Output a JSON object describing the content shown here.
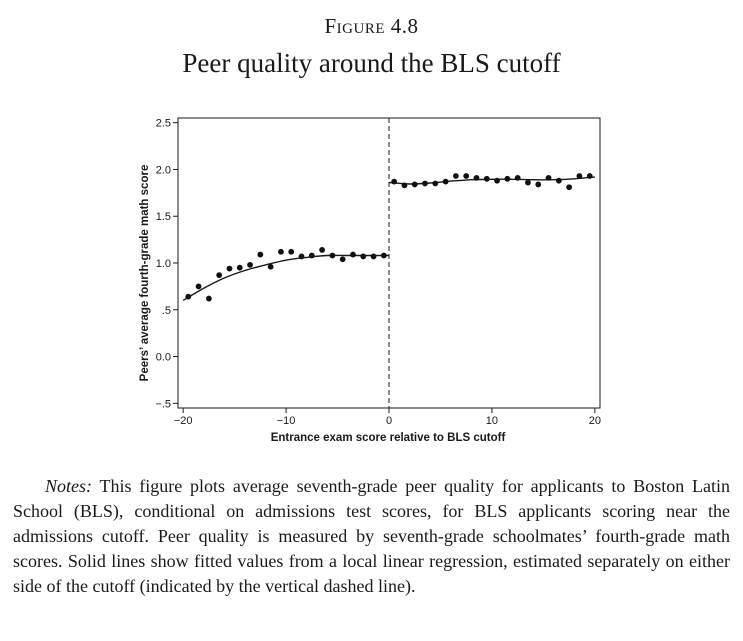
{
  "figure": {
    "label": "Figure 4.8",
    "title": "Peer quality around the BLS cutoff"
  },
  "notes": {
    "label": "Notes:",
    "text": "This figure plots average seventh-grade peer quality for applicants to Boston Latin School (BLS), conditional on admissions test scores, for BLS applicants scoring near the admissions cutoff. Peer quality is measured by seventh-grade schoolmates’ fourth-grade math scores. Solid lines show fitted values from a local linear regression, estimated separately on either side of the cutoff (indicated by the vertical dashed line)."
  },
  "chart_data": {
    "type": "scatter",
    "title": "Peer quality around the BLS cutoff",
    "xlabel": "Entrance exam score relative to BLS cutoff",
    "ylabel": "Peers’ average fourth-grade math score",
    "xlim": [
      -20.5,
      20.5
    ],
    "ylim": [
      -0.55,
      2.55
    ],
    "x_ticks": [
      -20,
      -10,
      0,
      10,
      20
    ],
    "x_tick_labels": [
      "−20",
      "−10",
      "0",
      "10",
      "20"
    ],
    "y_ticks": [
      -0.5,
      0.0,
      0.5,
      1.0,
      1.5,
      2.0,
      2.5
    ],
    "y_tick_labels": [
      "−.5",
      "0.0",
      ".5",
      "1.0",
      "1.5",
      "2.0",
      "2.5"
    ],
    "cutoff": 0,
    "grid": false,
    "series": [
      {
        "name": "Below cutoff",
        "x": [
          -19.5,
          -18.5,
          -17.5,
          -16.5,
          -15.5,
          -14.5,
          -13.5,
          -12.5,
          -11.5,
          -10.5,
          -9.5,
          -8.5,
          -7.5,
          -6.5,
          -5.5,
          -4.5,
          -3.5,
          -2.5,
          -1.5,
          -0.5
        ],
        "y": [
          0.64,
          0.75,
          0.62,
          0.87,
          0.94,
          0.95,
          0.98,
          1.09,
          0.96,
          1.12,
          1.12,
          1.07,
          1.08,
          1.14,
          1.08,
          1.04,
          1.09,
          1.07,
          1.07,
          1.08
        ]
      },
      {
        "name": "Above cutoff",
        "x": [
          0.5,
          1.5,
          2.5,
          3.5,
          4.5,
          5.5,
          6.5,
          7.5,
          8.5,
          9.5,
          10.5,
          11.5,
          12.5,
          13.5,
          14.5,
          15.5,
          16.5,
          17.5,
          18.5,
          19.5
        ],
        "y": [
          1.87,
          1.83,
          1.84,
          1.85,
          1.85,
          1.87,
          1.93,
          1.93,
          1.91,
          1.9,
          1.88,
          1.9,
          1.91,
          1.86,
          1.84,
          1.91,
          1.88,
          1.81,
          1.93,
          1.93
        ]
      }
    ],
    "fitted_lines": [
      {
        "name": "Fit below cutoff",
        "x": [
          -20,
          -18,
          -16,
          -14,
          -12,
          -10,
          -8,
          -6,
          -4,
          -2,
          0
        ],
        "y": [
          0.6,
          0.73,
          0.84,
          0.92,
          0.98,
          1.03,
          1.06,
          1.08,
          1.08,
          1.08,
          1.08
        ]
      },
      {
        "name": "Fit above cutoff",
        "x": [
          0,
          2,
          4,
          6,
          8,
          10,
          12,
          14,
          16,
          18,
          20
        ],
        "y": [
          1.86,
          1.845,
          1.855,
          1.875,
          1.89,
          1.895,
          1.895,
          1.89,
          1.89,
          1.9,
          1.92
        ]
      }
    ]
  }
}
